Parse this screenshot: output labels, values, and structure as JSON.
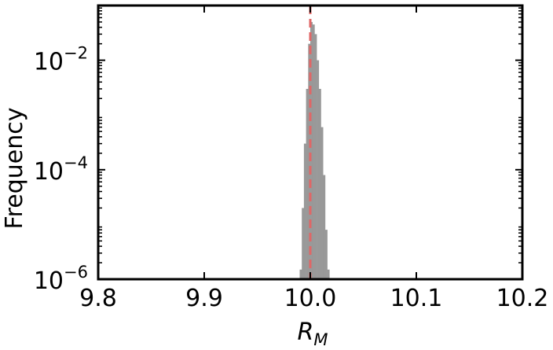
{
  "chart_data": {
    "type": "bar",
    "title": "",
    "xlabel": "R",
    "xlabel_subscript": "M",
    "ylabel": "Frequency",
    "xscale": "linear",
    "yscale": "log",
    "xlim": [
      9.8,
      10.2
    ],
    "ylim": [
      1e-06,
      0.1
    ],
    "xticks": [
      9.8,
      9.9,
      10.0,
      10.1,
      10.2
    ],
    "xtick_labels": [
      "9.8",
      "9.9",
      "10.0",
      "10.1",
      "10.2"
    ],
    "yticks": [
      1e-06,
      0.0001,
      0.01
    ],
    "ytick_labels": [
      {
        "base": "10",
        "exp": "−6"
      },
      {
        "base": "10",
        "exp": "−4"
      },
      {
        "base": "10",
        "exp": "−2"
      }
    ],
    "grid": false,
    "legend": false,
    "bar_color": "#999999",
    "reference_line": {
      "x": 10.0,
      "style": "dashed",
      "color": "#e06666"
    },
    "bins": [
      {
        "x0": 9.99,
        "x1": 9.992,
        "y": 1.5e-06
      },
      {
        "x0": 9.992,
        "x1": 9.994,
        "y": 2e-05
      },
      {
        "x0": 9.994,
        "x1": 9.996,
        "y": 0.0003
      },
      {
        "x0": 9.996,
        "x1": 9.998,
        "y": 0.003
      },
      {
        "x0": 9.998,
        "x1": 10.0,
        "y": 0.02
      },
      {
        "x0": 10.0,
        "x1": 10.002,
        "y": 0.05
      },
      {
        "x0": 10.002,
        "x1": 10.004,
        "y": 0.045
      },
      {
        "x0": 10.004,
        "x1": 10.006,
        "y": 0.03
      },
      {
        "x0": 10.006,
        "x1": 10.008,
        "y": 0.01
      },
      {
        "x0": 10.008,
        "x1": 10.01,
        "y": 0.003
      },
      {
        "x0": 10.01,
        "x1": 10.012,
        "y": 0.0006
      },
      {
        "x0": 10.012,
        "x1": 10.014,
        "y": 8e-05
      },
      {
        "x0": 10.014,
        "x1": 10.016,
        "y": 8e-06
      },
      {
        "x0": 10.016,
        "x1": 10.018,
        "y": 1.5e-06
      }
    ]
  }
}
